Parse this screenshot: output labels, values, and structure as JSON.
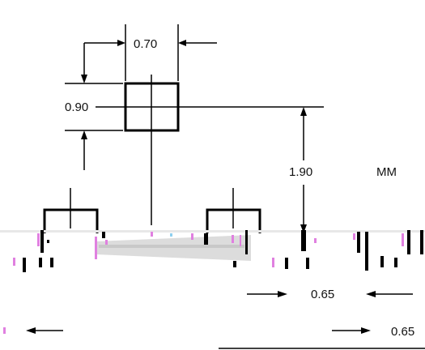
{
  "diagram": {
    "unit_label": "MM",
    "dimensions": {
      "pad_width": "0.70",
      "pad_height": "0.90",
      "pad_offset": "1.90",
      "pitch_upper": "0.65",
      "pitch_lower": "0.65"
    }
  },
  "colors": {
    "line": "#000000",
    "artifact_magenta": "#e080e0",
    "artifact_gray": "#c8c8c8",
    "artifact_blue": "#8fd0f0"
  }
}
